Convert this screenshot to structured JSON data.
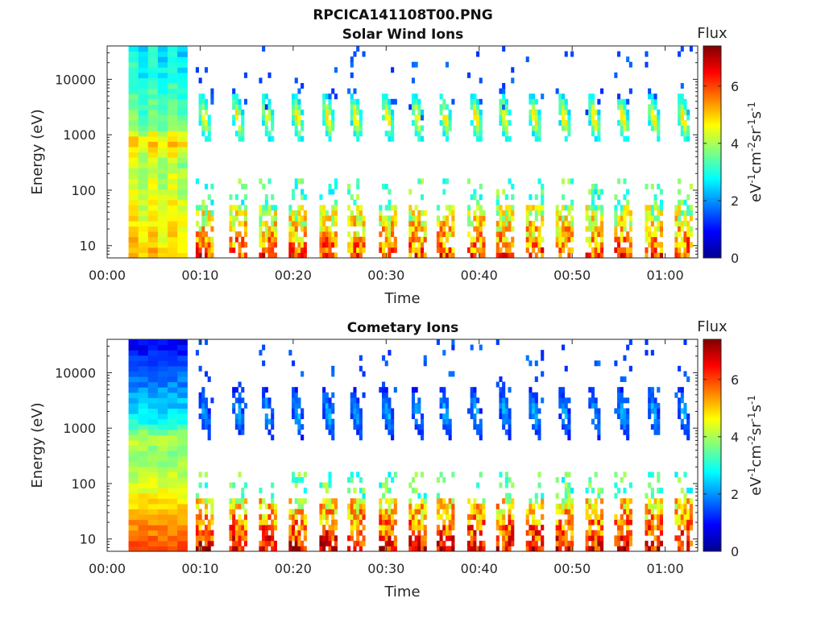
{
  "figure": {
    "title": "RPCICA141108T00.PNG"
  },
  "colorbar": {
    "label_top": "Flux",
    "ticks": [
      "0",
      "2",
      "4",
      "6"
    ],
    "range": [
      0,
      7.4
    ],
    "colormap": "jet"
  },
  "chart_data": [
    {
      "type": "heatmap",
      "title": "Solar Wind Ions",
      "xlabel": "Time",
      "ylabel": "Energy (eV)",
      "x_ticks": [
        "00:00",
        "00:10",
        "00:20",
        "00:30",
        "00:40",
        "00:50",
        "01:00"
      ],
      "x_tick_minutes": [
        0,
        10,
        20,
        30,
        40,
        50,
        60
      ],
      "xlim_minutes": [
        0,
        63.5
      ],
      "y_scale": "log",
      "y_ticks": [
        "10",
        "100",
        "1000",
        "10000"
      ],
      "y_tick_values": [
        10,
        100,
        1000,
        10000
      ],
      "ylim": [
        6,
        40000
      ],
      "colorbar_label": "eV-1cm-2sr-1s-1",
      "data_start_minutes": 2.3,
      "dense_block_end_minutes": 8.6,
      "burst_centers_minutes": [
        10.3,
        13.9,
        17.1,
        20.3,
        23.6,
        26.6,
        30.0,
        33.2,
        36.2,
        39.5,
        42.6,
        45.8,
        49.0,
        52.2,
        55.3,
        58.6,
        61.8
      ],
      "burst_peak_energy_eV": 1800,
      "burst_peak_flux": 4.7
    },
    {
      "type": "heatmap",
      "title": "Cometary Ions",
      "xlabel": "Time",
      "ylabel": "Energy (eV)",
      "x_ticks": [
        "00:00",
        "00:10",
        "00:20",
        "00:30",
        "00:40",
        "00:50",
        "01:00"
      ],
      "x_tick_minutes": [
        0,
        10,
        20,
        30,
        40,
        50,
        60
      ],
      "xlim_minutes": [
        0,
        63.5
      ],
      "y_scale": "log",
      "y_ticks": [
        "10",
        "100",
        "1000",
        "10000"
      ],
      "y_tick_values": [
        10,
        100,
        1000,
        10000
      ],
      "ylim": [
        6,
        40000
      ],
      "colorbar_label": "eV-1cm-2sr-1s-1",
      "data_start_minutes": 2.3,
      "dense_block_end_minutes": 8.6,
      "burst_centers_minutes": [
        10.3,
        13.9,
        17.1,
        20.3,
        23.6,
        26.6,
        30.0,
        33.2,
        36.2,
        39.5,
        42.6,
        45.8,
        49.0,
        52.2,
        55.3,
        58.6,
        61.8
      ],
      "burst_peak_energy_eV": 1700,
      "burst_peak_flux": 2.2
    }
  ]
}
